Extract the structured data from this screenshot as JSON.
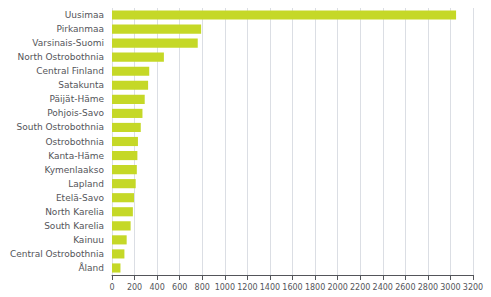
{
  "chart_data": {
    "type": "bar",
    "orientation": "horizontal",
    "categories": [
      "Uusimaa",
      "Pirkanmaa",
      "Varsinais-Suomi",
      "North Ostrobothnia",
      "Central Finland",
      "Satakunta",
      "Päijät-Häme",
      "Pohjois-Savo",
      "South Ostrobothnia",
      "Ostrobothnia",
      "Kanta-Häme",
      "Kymenlaakso",
      "Lapland",
      "Etelä-Savo",
      "North Karelia",
      "South Karelia",
      "Kainuu",
      "Central Ostrobothnia",
      "Åland"
    ],
    "values": [
      3050,
      790,
      760,
      460,
      330,
      320,
      290,
      270,
      255,
      230,
      225,
      220,
      210,
      195,
      185,
      165,
      130,
      110,
      75
    ],
    "color": "#c5d827",
    "xlim": [
      0,
      3200
    ],
    "xticks": [
      0,
      200,
      400,
      600,
      800,
      1000,
      1200,
      1400,
      1600,
      1800,
      2000,
      2200,
      2400,
      2600,
      2800,
      3000,
      3200
    ],
    "grid": true
  }
}
